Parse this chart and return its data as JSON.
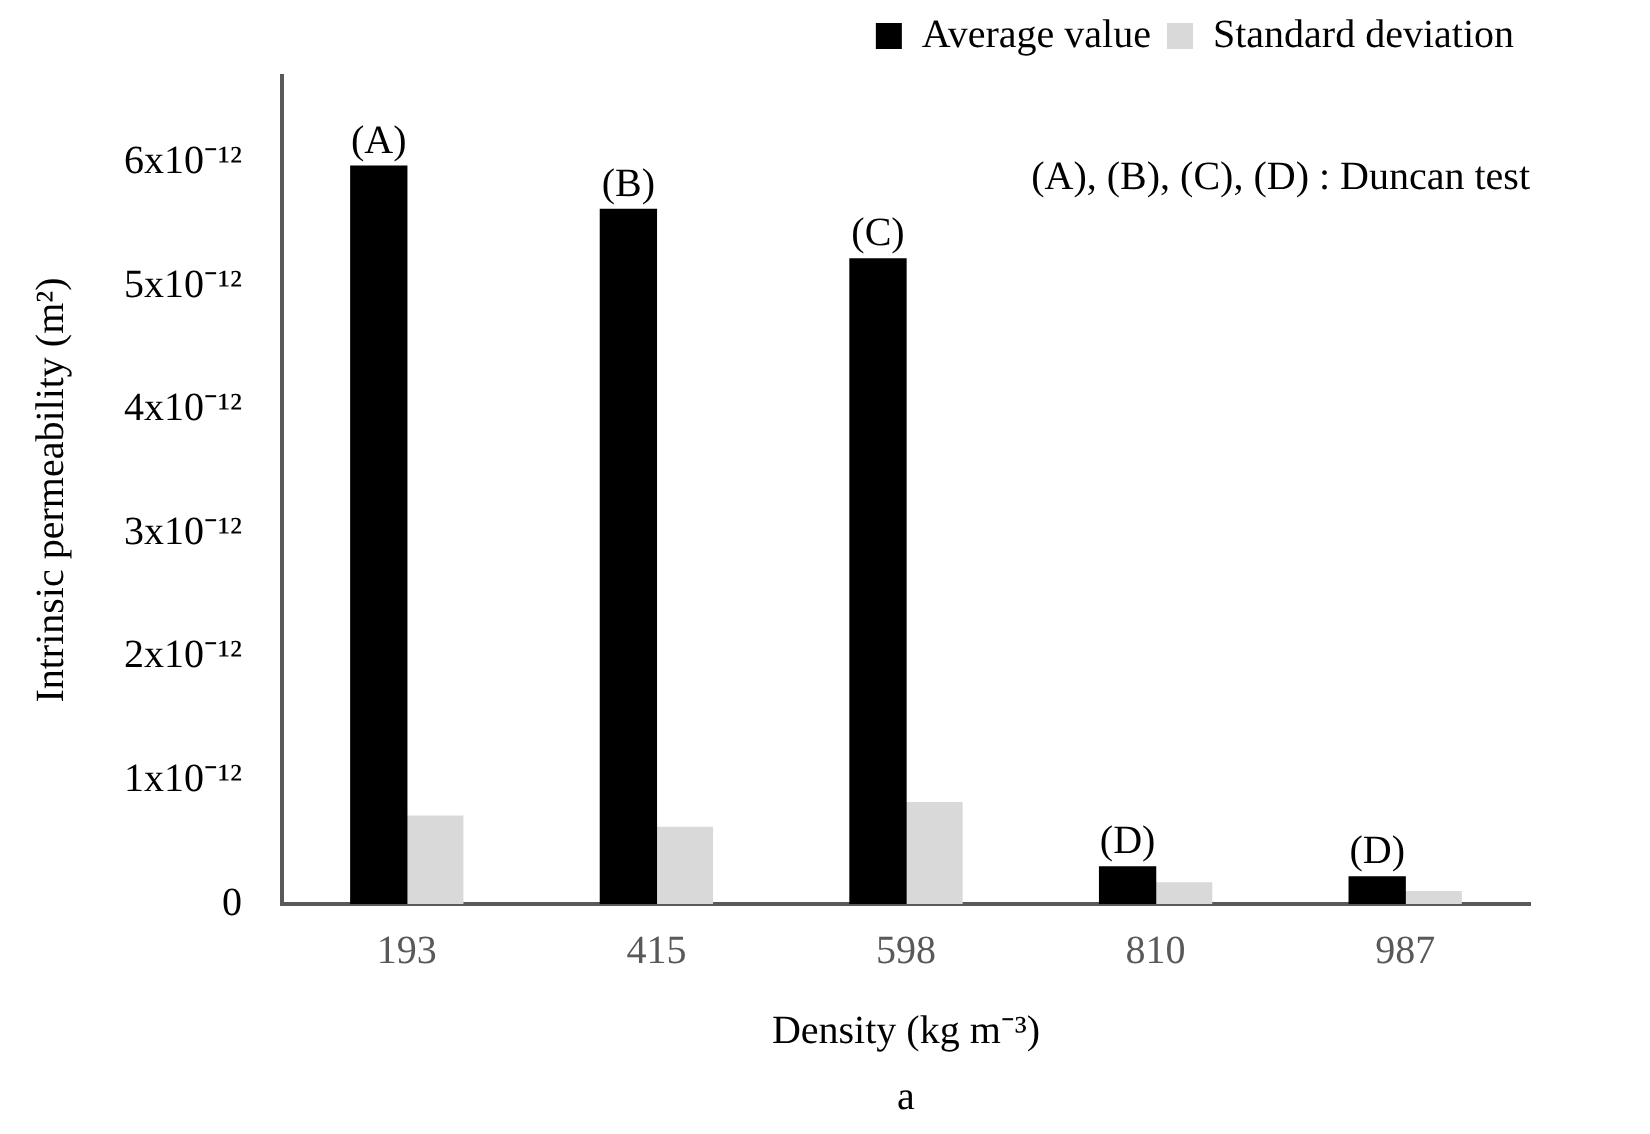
{
  "chart_data": {
    "type": "bar",
    "categories": [
      "193",
      "415",
      "598",
      "810",
      "987"
    ],
    "series": [
      {
        "name": "Average value",
        "color": "#000000",
        "values": [
          5.97e-12,
          5.62e-12,
          5.22e-12,
          3e-13,
          2.2e-13
        ]
      },
      {
        "name": "Standard deviation",
        "color": "#d9d9d9",
        "values": [
          7.1e-13,
          6.2e-13,
          8.2e-13,
          1.7e-13,
          1e-13
        ]
      }
    ],
    "xlabel": "Density (kg m⁻³)",
    "ylabel": "Intrinsic permeability (m²)",
    "ylim": [
      0,
      6.7e-12
    ],
    "yticks": [
      {
        "value": 0,
        "label": "0"
      },
      {
        "value": 1e-12,
        "label": "1x10⁻¹²"
      },
      {
        "value": 2e-12,
        "label": "2x10⁻¹²"
      },
      {
        "value": 3e-12,
        "label": "3x10⁻¹²"
      },
      {
        "value": 4e-12,
        "label": "4x10⁻¹²"
      },
      {
        "value": 5e-12,
        "label": "5x10⁻¹²"
      },
      {
        "value": 6e-12,
        "label": "6x10⁻¹²"
      }
    ],
    "annotations": [
      "(A), (B), (C), (D) : Duncan test",
      "a",
      {
        "text": "(A)",
        "x": "193",
        "y": 5.97e-12
      },
      {
        "text": "(B)",
        "x": "415",
        "y": 5.62e-12
      },
      {
        "text": "(C)",
        "x": "598",
        "y": 5.22e-12
      },
      {
        "text": "(D)",
        "x": "810",
        "y": 3e-13
      },
      {
        "text": "(D)",
        "x": "987",
        "y": 2.2e-13
      }
    ],
    "grid": false,
    "legend": "top right"
  }
}
